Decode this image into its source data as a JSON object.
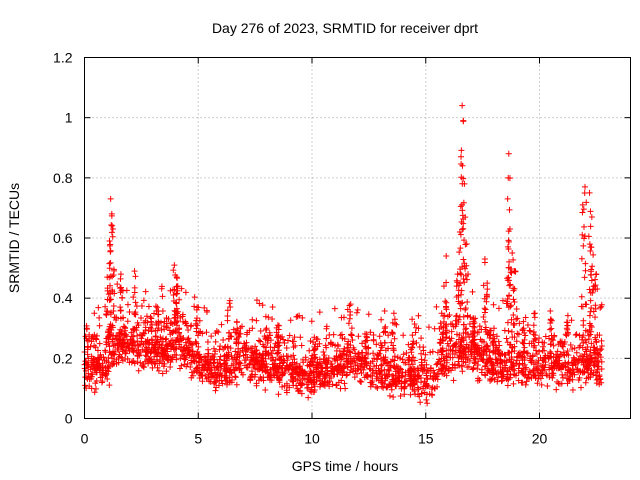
{
  "chart_data": {
    "type": "scatter",
    "title": "Day 276 of 2023, SRMTID for receiver dprt",
    "xlabel": "GPS time / hours",
    "ylabel": "SRMTID / TECUs",
    "xlim": [
      0,
      24
    ],
    "ylim": [
      0,
      1.2
    ],
    "xticks": [
      0,
      5,
      10,
      15,
      20
    ],
    "yticks": [
      0,
      0.2,
      0.4,
      0.6,
      0.8,
      1,
      1.2
    ],
    "xtick_labels": [
      "0",
      "5",
      "10",
      "15",
      "20"
    ],
    "ytick_labels": [
      "0",
      "0.2",
      "0.4",
      "0.6",
      "0.8",
      "1",
      "1.2"
    ],
    "grid": true,
    "marker": "plus",
    "color": "#ff0000",
    "approx_points_per_hour": 110,
    "last_x": 22.75,
    "background_trend": [
      {
        "x": 0.0,
        "y": 0.15
      },
      {
        "x": 1.0,
        "y": 0.17
      },
      {
        "x": 1.5,
        "y": 0.25
      },
      {
        "x": 2.5,
        "y": 0.22
      },
      {
        "x": 3.5,
        "y": 0.22
      },
      {
        "x": 4.0,
        "y": 0.24
      },
      {
        "x": 5.0,
        "y": 0.18
      },
      {
        "x": 6.0,
        "y": 0.16
      },
      {
        "x": 7.0,
        "y": 0.19
      },
      {
        "x": 8.0,
        "y": 0.17
      },
      {
        "x": 9.0,
        "y": 0.15
      },
      {
        "x": 10.0,
        "y": 0.14
      },
      {
        "x": 11.0,
        "y": 0.16
      },
      {
        "x": 12.0,
        "y": 0.18
      },
      {
        "x": 13.0,
        "y": 0.15
      },
      {
        "x": 14.0,
        "y": 0.13
      },
      {
        "x": 15.0,
        "y": 0.12
      },
      {
        "x": 16.0,
        "y": 0.2
      },
      {
        "x": 17.0,
        "y": 0.22
      },
      {
        "x": 18.0,
        "y": 0.17
      },
      {
        "x": 19.0,
        "y": 0.18
      },
      {
        "x": 20.0,
        "y": 0.17
      },
      {
        "x": 21.0,
        "y": 0.16
      },
      {
        "x": 22.0,
        "y": 0.18
      },
      {
        "x": 22.75,
        "y": 0.16
      }
    ],
    "spikes": [
      {
        "x": 0.1,
        "y": 0.3
      },
      {
        "x": 0.6,
        "y": 0.2
      },
      {
        "x": 1.0,
        "y": 0.47
      },
      {
        "x": 1.1,
        "y": 0.59
      },
      {
        "x": 1.15,
        "y": 0.73
      },
      {
        "x": 1.2,
        "y": 0.68
      },
      {
        "x": 1.25,
        "y": 0.63
      },
      {
        "x": 1.6,
        "y": 0.48
      },
      {
        "x": 2.2,
        "y": 0.49
      },
      {
        "x": 3.2,
        "y": 0.37
      },
      {
        "x": 3.95,
        "y": 0.51
      },
      {
        "x": 4.05,
        "y": 0.47
      },
      {
        "x": 4.1,
        "y": 0.44
      },
      {
        "x": 4.95,
        "y": 0.37
      },
      {
        "x": 6.3,
        "y": 0.36
      },
      {
        "x": 6.7,
        "y": 0.32
      },
      {
        "x": 8.0,
        "y": 0.3
      },
      {
        "x": 8.5,
        "y": 0.31
      },
      {
        "x": 10.1,
        "y": 0.27
      },
      {
        "x": 11.7,
        "y": 0.38
      },
      {
        "x": 12.4,
        "y": 0.28
      },
      {
        "x": 13.2,
        "y": 0.3
      },
      {
        "x": 13.6,
        "y": 0.35
      },
      {
        "x": 14.4,
        "y": 0.33
      },
      {
        "x": 15.7,
        "y": 0.35
      },
      {
        "x": 15.8,
        "y": 0.44
      },
      {
        "x": 15.9,
        "y": 0.54
      },
      {
        "x": 16.4,
        "y": 0.48
      },
      {
        "x": 16.5,
        "y": 0.62
      },
      {
        "x": 16.55,
        "y": 0.87
      },
      {
        "x": 16.6,
        "y": 1.04
      },
      {
        "x": 16.65,
        "y": 0.99
      },
      {
        "x": 16.7,
        "y": 0.78
      },
      {
        "x": 16.8,
        "y": 0.58
      },
      {
        "x": 17.1,
        "y": 0.33
      },
      {
        "x": 17.6,
        "y": 0.53
      },
      {
        "x": 17.7,
        "y": 0.45
      },
      {
        "x": 18.0,
        "y": 0.3
      },
      {
        "x": 18.6,
        "y": 0.73
      },
      {
        "x": 18.65,
        "y": 0.88
      },
      {
        "x": 18.7,
        "y": 0.63
      },
      {
        "x": 18.8,
        "y": 0.55
      },
      {
        "x": 18.9,
        "y": 0.49
      },
      {
        "x": 19.3,
        "y": 0.3
      },
      {
        "x": 19.8,
        "y": 0.35
      },
      {
        "x": 20.5,
        "y": 0.33
      },
      {
        "x": 21.2,
        "y": 0.32
      },
      {
        "x": 21.9,
        "y": 0.71
      },
      {
        "x": 22.0,
        "y": 0.77
      },
      {
        "x": 22.2,
        "y": 0.75
      },
      {
        "x": 22.3,
        "y": 0.67
      },
      {
        "x": 22.25,
        "y": 0.57
      },
      {
        "x": 22.4,
        "y": 0.44
      },
      {
        "x": 22.5,
        "y": 0.48
      }
    ]
  }
}
